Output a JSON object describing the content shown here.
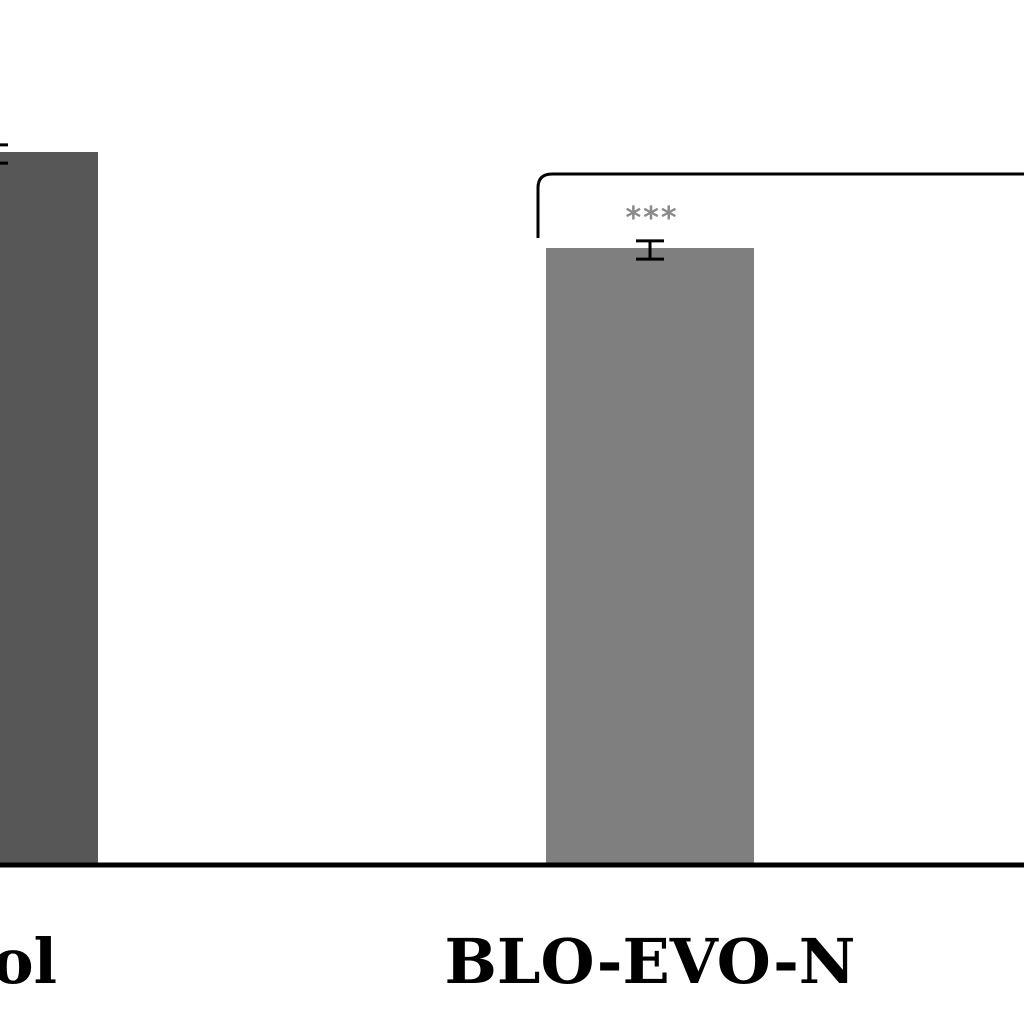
{
  "chart_data": {
    "type": "bar",
    "categories": [
      "trol",
      "BLO-EVO-N"
    ],
    "values": [
      100,
      86.5
    ],
    "errors": [
      1.0,
      1.0
    ],
    "bar_colors": [
      "#575757",
      "#7f7f7f"
    ],
    "significance": {
      "category_index": 1,
      "label": "***",
      "color": "#8a8a8a"
    },
    "title": "",
    "xlabel": "",
    "ylabel": "",
    "ylim": [
      0,
      120
    ],
    "grid": false,
    "legend": "none"
  }
}
